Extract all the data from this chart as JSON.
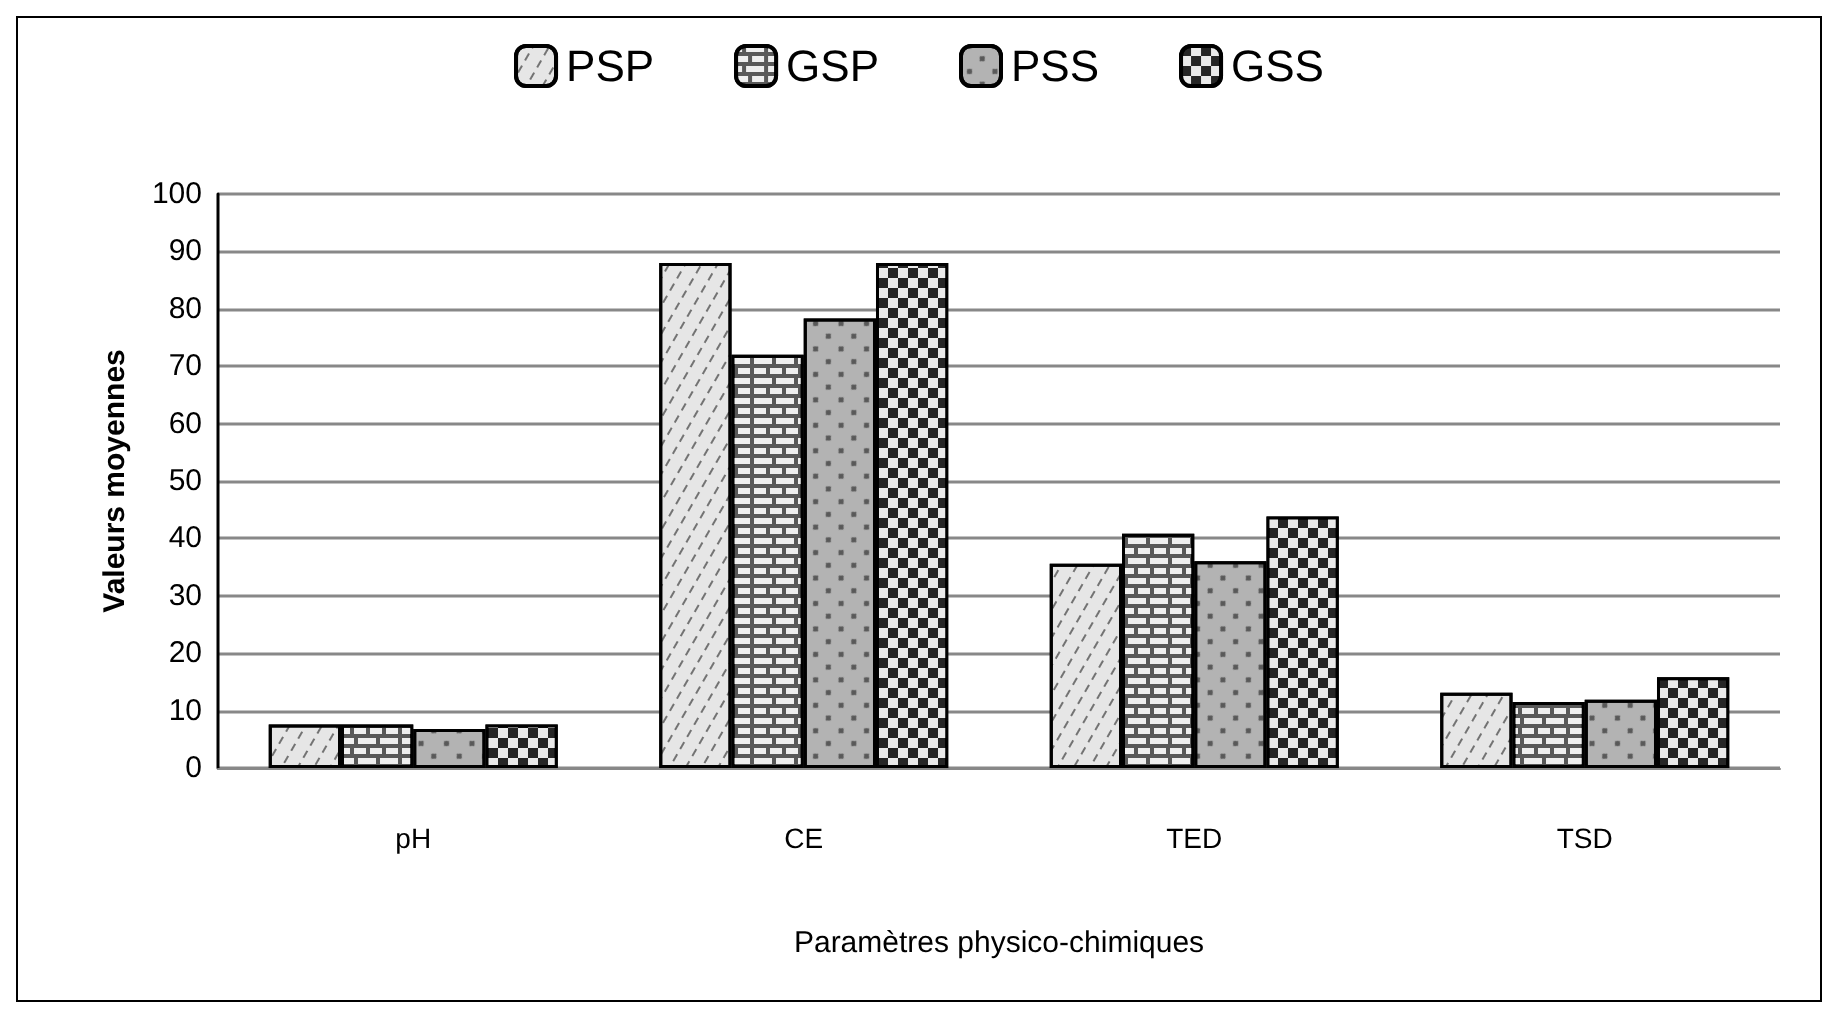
{
  "chart_data": {
    "type": "bar",
    "xlabel": "Paramètres physico-chimiques",
    "ylabel": "Valeurs moyennes",
    "categories": [
      "pH",
      "CE",
      "TED",
      "TSD"
    ],
    "series": [
      {
        "name": "PSP",
        "color": "#e6e6e6",
        "values": [
          7.6,
          88,
          35.6,
          13.1
        ]
      },
      {
        "name": "GSP",
        "color": "#595959",
        "values": [
          7.6,
          72,
          40.8,
          11.5
        ]
      },
      {
        "name": "PSS",
        "color": "#b3b3b3",
        "values": [
          6.8,
          78.3,
          36,
          11.9
        ]
      },
      {
        "name": "GSS",
        "color": "#262626",
        "values": [
          7.6,
          88,
          43.8,
          15.8
        ]
      }
    ],
    "ylim": [
      0,
      100
    ],
    "yticks": [
      0,
      10,
      20,
      30,
      40,
      50,
      60,
      70,
      80,
      90,
      100
    ],
    "grid": "y",
    "legend": "top"
  }
}
